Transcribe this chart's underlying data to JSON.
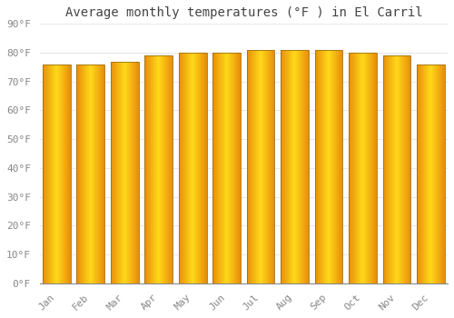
{
  "title": "Average monthly temperatures (°F ) in El Carril",
  "months": [
    "Jan",
    "Feb",
    "Mar",
    "Apr",
    "May",
    "Jun",
    "Jul",
    "Aug",
    "Sep",
    "Oct",
    "Nov",
    "Dec"
  ],
  "values": [
    76,
    76,
    77,
    79,
    80,
    80,
    81,
    81,
    81,
    80,
    79,
    76
  ],
  "bar_color_center": "#FFD700",
  "bar_color_edge": "#E8900A",
  "ylim": [
    0,
    90
  ],
  "yticks": [
    0,
    10,
    20,
    30,
    40,
    50,
    60,
    70,
    80,
    90
  ],
  "ytick_labels": [
    "0°F",
    "10°F",
    "20°F",
    "30°F",
    "40°F",
    "50°F",
    "60°F",
    "70°F",
    "80°F",
    "90°F"
  ],
  "background_color": "#FFFFFF",
  "grid_color": "#E8E8E8",
  "title_fontsize": 10,
  "tick_fontsize": 8,
  "bar_outline_color": "#B8860B",
  "bar_width": 0.82
}
